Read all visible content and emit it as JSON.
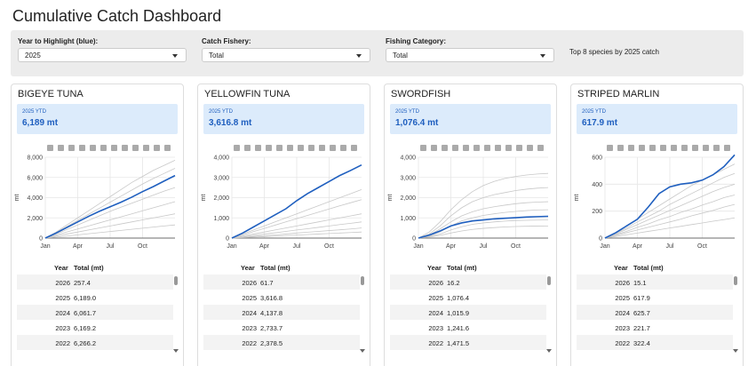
{
  "title": "Cumulative Catch Dashboard",
  "controls": [
    {
      "label": "Year to Highlight (blue):",
      "value": "2025"
    },
    {
      "label": "Catch Fishery:",
      "value": "Total"
    },
    {
      "label": "Fishing Category:",
      "value": "Total"
    }
  ],
  "note": "Top 8 species by 2025 catch",
  "panels": [
    {
      "title": "BIGEYE TUNA",
      "ytd_label": "2025 YTD",
      "ytd_value": "6,189 mt",
      "table": {
        "header": [
          "Year",
          "Total (mt)"
        ],
        "rows": [
          [
            "2026",
            "257.4"
          ],
          [
            "2025",
            "6,189.0"
          ],
          [
            "2024",
            "6,061.7"
          ],
          [
            "2023",
            "6,169.2"
          ],
          [
            "2022",
            "6,266.2"
          ]
        ]
      }
    },
    {
      "title": "YELLOWFIN TUNA",
      "ytd_label": "2025 YTD",
      "ytd_value": "3,616.8 mt",
      "table": {
        "header": [
          "Year",
          "Total (mt)"
        ],
        "rows": [
          [
            "2026",
            "61.7"
          ],
          [
            "2025",
            "3,616.8"
          ],
          [
            "2024",
            "4,137.8"
          ],
          [
            "2023",
            "2,733.7"
          ],
          [
            "2022",
            "2,378.5"
          ]
        ]
      }
    },
    {
      "title": "SWORDFISH",
      "ytd_label": "2025 YTD",
      "ytd_value": "1,076.4 mt",
      "table": {
        "header": [
          "Year",
          "Total (mt)"
        ],
        "rows": [
          [
            "2026",
            "16.2"
          ],
          [
            "2025",
            "1,076.4"
          ],
          [
            "2024",
            "1,015.9"
          ],
          [
            "2023",
            "1,241.6"
          ],
          [
            "2022",
            "1,471.5"
          ]
        ]
      }
    },
    {
      "title": "STRIPED MARLIN",
      "ytd_label": "2025 YTD",
      "ytd_value": "617.9 mt",
      "table": {
        "header": [
          "Year",
          "Total (mt)"
        ],
        "rows": [
          [
            "2026",
            "15.1"
          ],
          [
            "2025",
            "617.9"
          ],
          [
            "2024",
            "625.7"
          ],
          [
            "2023",
            "221.7"
          ],
          [
            "2022",
            "322.4"
          ]
        ]
      }
    }
  ],
  "chart_data": [
    {
      "type": "line",
      "y_label": "mt",
      "grid": true,
      "x": [
        0,
        1,
        2,
        3,
        4,
        5,
        6,
        7,
        8,
        9,
        10,
        11,
        12
      ],
      "xlim": [
        0,
        12
      ],
      "xticks": [
        {
          "value": 0,
          "label": "Jan"
        },
        {
          "value": 3,
          "label": "Apr"
        },
        {
          "value": 6,
          "label": "Jul"
        },
        {
          "value": 9,
          "label": "Oct"
        }
      ],
      "ylim": [
        0,
        8000
      ],
      "yticks": [
        0,
        {
          "value": 2000,
          "label": "2,000"
        },
        {
          "value": 4000,
          "label": "4,000"
        },
        {
          "value": 6000,
          "label": "6,000"
        },
        {
          "value": 8000,
          "label": "8,000"
        }
      ],
      "series": [
        {
          "color": "#c8c8c8",
          "values": [
            0,
            600,
            1300,
            2000,
            2700,
            3400,
            4100,
            4800,
            5500,
            6100,
            6700,
            7200,
            7700
          ]
        },
        {
          "color": "#c8c8c8",
          "values": [
            0,
            550,
            1150,
            1750,
            2350,
            2950,
            3550,
            4150,
            4750,
            5350,
            5900,
            6400,
            6900
          ]
        },
        {
          "color": "#c8c8c8",
          "values": [
            0,
            400,
            850,
            1300,
            1750,
            2200,
            2650,
            3050,
            3450,
            3850,
            4250,
            4650,
            5000
          ]
        },
        {
          "color": "#c8c8c8",
          "values": [
            0,
            300,
            600,
            900,
            1200,
            1500,
            1800,
            2100,
            2400,
            2700,
            3000,
            3300,
            3600
          ]
        },
        {
          "color": "#c8c8c8",
          "values": [
            0,
            200,
            400,
            600,
            800,
            1000,
            1200,
            1400,
            1600,
            1800,
            2000,
            2200,
            2400
          ]
        },
        {
          "color": "#c8c8c8",
          "values": [
            0,
            100,
            200,
            320,
            430,
            540,
            650,
            760,
            870,
            980,
            1090,
            1200,
            1300
          ]
        },
        {
          "color": "#1f5fbf",
          "values": [
            0,
            500,
            1050,
            1600,
            2150,
            2650,
            3100,
            3550,
            4050,
            4600,
            5100,
            5650,
            6189
          ]
        }
      ]
    },
    {
      "type": "line",
      "y_label": "mt",
      "grid": true,
      "x": [
        0,
        1,
        2,
        3,
        4,
        5,
        6,
        7,
        8,
        9,
        10,
        11,
        12
      ],
      "xlim": [
        0,
        12
      ],
      "xticks": [
        {
          "value": 0,
          "label": "Jan"
        },
        {
          "value": 3,
          "label": "Apr"
        },
        {
          "value": 6,
          "label": "Jul"
        },
        {
          "value": 9,
          "label": "Oct"
        }
      ],
      "ylim": [
        0,
        4000
      ],
      "yticks": [
        0,
        {
          "value": 1000,
          "label": "1,000"
        },
        {
          "value": 2000,
          "label": "2,000"
        },
        {
          "value": 3000,
          "label": "3,000"
        },
        {
          "value": 4000,
          "label": "4,000"
        }
      ],
      "series": [
        {
          "color": "#c8c8c8",
          "values": [
            0,
            200,
            400,
            600,
            800,
            1000,
            1200,
            1400,
            1600,
            1800,
            2000,
            2200,
            2400
          ]
        },
        {
          "color": "#c8c8c8",
          "values": [
            0,
            150,
            320,
            480,
            640,
            800,
            960,
            1120,
            1280,
            1440,
            1600,
            1750,
            1900
          ]
        },
        {
          "color": "#c8c8c8",
          "values": [
            0,
            100,
            200,
            300,
            400,
            500,
            600,
            700,
            800,
            900,
            1000,
            1100,
            1200
          ]
        },
        {
          "color": "#c8c8c8",
          "values": [
            0,
            60,
            130,
            200,
            260,
            330,
            400,
            460,
            530,
            600,
            670,
            730,
            800
          ]
        },
        {
          "color": "#c8c8c8",
          "values": [
            0,
            40,
            80,
            120,
            160,
            200,
            250,
            290,
            330,
            370,
            410,
            450,
            500
          ]
        },
        {
          "color": "#c8c8c8",
          "values": [
            0,
            25,
            50,
            75,
            100,
            125,
            150,
            175,
            200,
            225,
            250,
            275,
            300
          ]
        },
        {
          "color": "#1f5fbf",
          "values": [
            0,
            250,
            550,
            850,
            1150,
            1450,
            1850,
            2200,
            2500,
            2800,
            3100,
            3350,
            3617
          ]
        }
      ]
    },
    {
      "type": "line",
      "y_label": "mt",
      "grid": true,
      "x": [
        0,
        1,
        2,
        3,
        4,
        5,
        6,
        7,
        8,
        9,
        10,
        11,
        12
      ],
      "xlim": [
        0,
        12
      ],
      "xticks": [
        {
          "value": 0,
          "label": "Jan"
        },
        {
          "value": 3,
          "label": "Apr"
        },
        {
          "value": 6,
          "label": "Jul"
        },
        {
          "value": 9,
          "label": "Oct"
        }
      ],
      "ylim": [
        0,
        4000
      ],
      "yticks": [
        0,
        {
          "value": 1000,
          "label": "1,000"
        },
        {
          "value": 2000,
          "label": "2,000"
        },
        {
          "value": 3000,
          "label": "3,000"
        },
        {
          "value": 4000,
          "label": "4,000"
        }
      ],
      "series": [
        {
          "color": "#c8c8c8",
          "values": [
            0,
            300,
            800,
            1400,
            1900,
            2300,
            2600,
            2800,
            2950,
            3050,
            3120,
            3170,
            3200
          ]
        },
        {
          "color": "#c8c8c8",
          "values": [
            0,
            200,
            600,
            1100,
            1500,
            1800,
            2000,
            2150,
            2250,
            2350,
            2420,
            2470,
            2500
          ]
        },
        {
          "color": "#c8c8c8",
          "values": [
            0,
            150,
            450,
            800,
            1100,
            1300,
            1450,
            1550,
            1630,
            1700,
            1750,
            1780,
            1800
          ]
        },
        {
          "color": "#c8c8c8",
          "values": [
            0,
            100,
            300,
            600,
            850,
            1000,
            1120,
            1200,
            1270,
            1320,
            1360,
            1390,
            1400
          ]
        },
        {
          "color": "#c8c8c8",
          "values": [
            0,
            80,
            200,
            400,
            560,
            680,
            750,
            800,
            840,
            870,
            880,
            890,
            900
          ]
        },
        {
          "color": "#c8c8c8",
          "values": [
            0,
            50,
            130,
            250,
            350,
            430,
            480,
            520,
            550,
            570,
            585,
            595,
            600
          ]
        },
        {
          "color": "#1f5fbf",
          "values": [
            0,
            150,
            350,
            600,
            750,
            850,
            900,
            950,
            980,
            1010,
            1040,
            1060,
            1076.4
          ]
        }
      ]
    },
    {
      "type": "line",
      "y_label": "mt",
      "grid": true,
      "x": [
        0,
        1,
        2,
        3,
        4,
        5,
        6,
        7,
        8,
        9,
        10,
        11,
        12
      ],
      "xlim": [
        0,
        12
      ],
      "xticks": [
        {
          "value": 0,
          "label": "Jan"
        },
        {
          "value": 3,
          "label": "Apr"
        },
        {
          "value": 6,
          "label": "Jul"
        },
        {
          "value": 9,
          "label": "Oct"
        }
      ],
      "ylim": [
        0,
        600
      ],
      "yticks": [
        0,
        200,
        400,
        600
      ],
      "series": [
        {
          "color": "#c8c8c8",
          "values": [
            0,
            40,
            90,
            140,
            190,
            240,
            290,
            340,
            390,
            430,
            470,
            510,
            550
          ]
        },
        {
          "color": "#c8c8c8",
          "values": [
            0,
            35,
            75,
            120,
            160,
            200,
            250,
            290,
            330,
            370,
            410,
            450,
            480
          ]
        },
        {
          "color": "#c8c8c8",
          "values": [
            0,
            30,
            65,
            100,
            135,
            170,
            205,
            240,
            275,
            310,
            345,
            375,
            400
          ]
        },
        {
          "color": "#c8c8c8",
          "values": [
            0,
            25,
            50,
            80,
            105,
            135,
            160,
            190,
            215,
            245,
            270,
            300,
            320
          ]
        },
        {
          "color": "#c8c8c8",
          "values": [
            0,
            20,
            40,
            60,
            80,
            100,
            120,
            140,
            165,
            185,
            205,
            230,
            250
          ]
        },
        {
          "color": "#c8c8c8",
          "values": [
            0,
            12,
            25,
            37,
            50,
            62,
            75,
            87,
            100,
            112,
            125,
            137,
            150
          ]
        },
        {
          "color": "#1f5fbf",
          "values": [
            0,
            40,
            90,
            140,
            230,
            330,
            380,
            400,
            410,
            430,
            470,
            530,
            617.9
          ]
        }
      ]
    }
  ]
}
